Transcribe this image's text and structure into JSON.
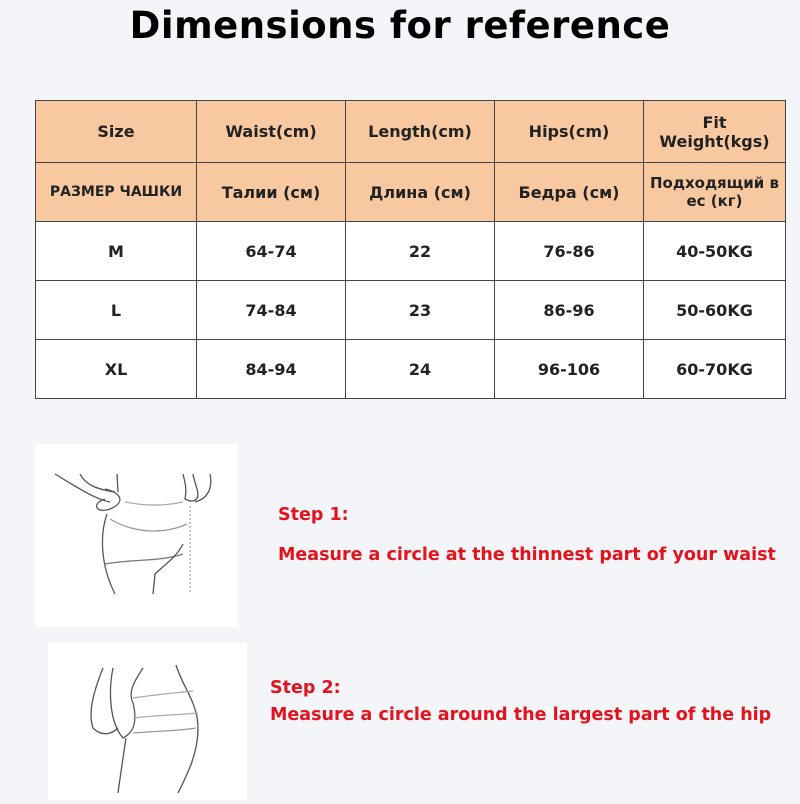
{
  "title": "Dimensions for reference",
  "table": {
    "headers_en": [
      "Size",
      "Waist(cm)",
      "Length(cm)",
      "Hips(cm)",
      "Fit  Weight(kgs)"
    ],
    "headers_ru": [
      "РАЗМЕР ЧАШКИ",
      "Талии (см)",
      "Длина (см)",
      "Бедра (см)",
      "Подходящий в ес (кг)"
    ],
    "rows": [
      [
        "M",
        "64-74",
        "22",
        "76-86",
        "40-50KG"
      ],
      [
        "L",
        "74-84",
        "23",
        "86-96",
        "50-60KG"
      ],
      [
        "XL",
        "84-94",
        "24",
        "96-106",
        "60-70KG"
      ]
    ]
  },
  "colors": {
    "header_bg": "#f8c9a1",
    "step_text": "#e3121c"
  },
  "steps": [
    {
      "label": "Step 1:",
      "text": "Measure a circle at the thinnest part of your waist"
    },
    {
      "label": "Step 2:",
      "text": "Measure a circle around the largest part of the hip"
    }
  ]
}
